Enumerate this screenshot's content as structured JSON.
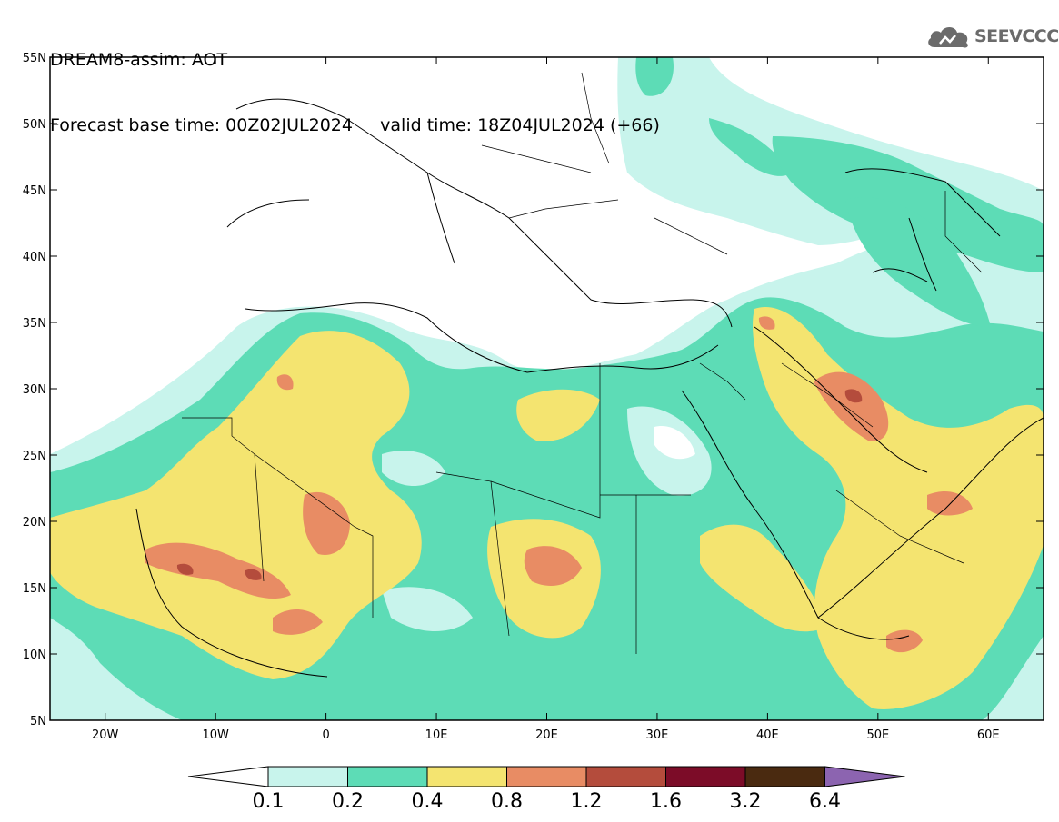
{
  "header": {
    "title": "DREAM8-assim: AOT",
    "base_time": "Forecast base time: 00Z02JUL2024",
    "valid_time": "valid time: 18Z04JUL2024 (+66)"
  },
  "logo": {
    "text": "SEEVCCC",
    "icon": "cloud-icon"
  },
  "map": {
    "lat_labels": [
      "55N",
      "50N",
      "45N",
      "40N",
      "35N",
      "30N",
      "25N",
      "20N",
      "15N",
      "10N",
      "5N"
    ],
    "lon_labels": [
      "20W",
      "10W",
      "0",
      "10E",
      "20E",
      "30E",
      "40E",
      "50E",
      "60E"
    ],
    "lat_values": [
      55,
      50,
      45,
      40,
      35,
      30,
      25,
      20,
      15,
      10,
      5
    ],
    "lon_values": [
      -20,
      -10,
      0,
      10,
      20,
      30,
      40,
      50,
      60
    ],
    "lon_range": [
      -25,
      65
    ],
    "lat_range": [
      5,
      55
    ]
  },
  "colorbar": {
    "labels": [
      "0.1",
      "0.2",
      "0.4",
      "0.8",
      "1.2",
      "1.6",
      "3.2",
      "6.4"
    ],
    "colors": [
      "#c8f4ec",
      "#5ddcb6",
      "#f4e470",
      "#e88c64",
      "#b44c3c",
      "#7c0c28",
      "#4a2a10",
      "#8c64b0"
    ],
    "under_color": "#ffffff",
    "over_color": "#8c64b0"
  }
}
